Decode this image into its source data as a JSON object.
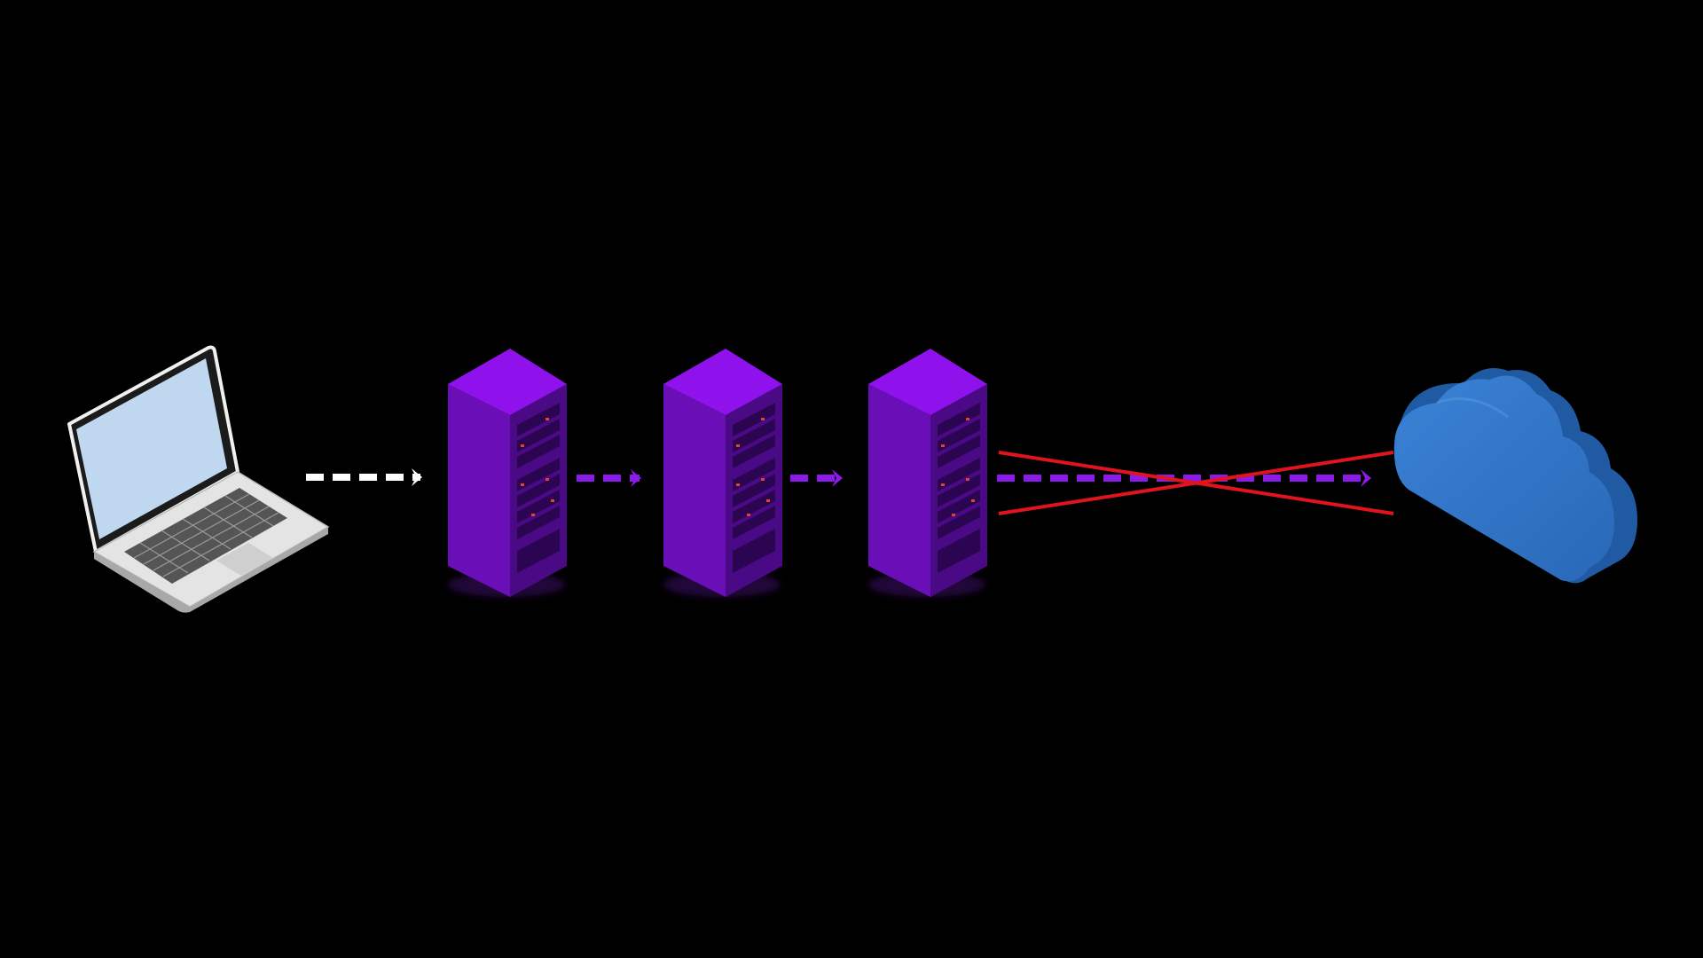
{
  "diagram": {
    "background": "#000000",
    "nodes": [
      {
        "id": "laptop",
        "kind": "laptop",
        "icon": "laptop-icon"
      },
      {
        "id": "server-1",
        "kind": "server-rack",
        "icon": "server-rack-icon"
      },
      {
        "id": "server-2",
        "kind": "server-rack",
        "icon": "server-rack-icon"
      },
      {
        "id": "server-3",
        "kind": "server-rack",
        "icon": "server-rack-icon"
      },
      {
        "id": "cloud",
        "kind": "cloud",
        "icon": "cloud-icon"
      }
    ],
    "edges": [
      {
        "from": "laptop",
        "to": "server-1",
        "style": "dashed",
        "color": "#ffffff",
        "blocked": false
      },
      {
        "from": "server-1",
        "to": "server-2",
        "style": "dashed",
        "color": "#8a1be8",
        "blocked": false
      },
      {
        "from": "server-2",
        "to": "server-3",
        "style": "dashed",
        "color": "#8a1be8",
        "blocked": false
      },
      {
        "from": "server-3",
        "to": "cloud",
        "style": "dashed",
        "color": "#8a1be8",
        "blocked": true,
        "block_color": "#e0141e"
      }
    ],
    "colors": {
      "rack_top": "#8f12ec",
      "rack_left": "#6a0fb8",
      "rack_right": "#4a0a85",
      "rack_led": "#e0452a",
      "cloud_front": "#2f74c8",
      "cloud_side": "#1f5aa3",
      "laptop_screen": "#c0d8ef",
      "laptop_body": "#e7e7e7"
    }
  }
}
